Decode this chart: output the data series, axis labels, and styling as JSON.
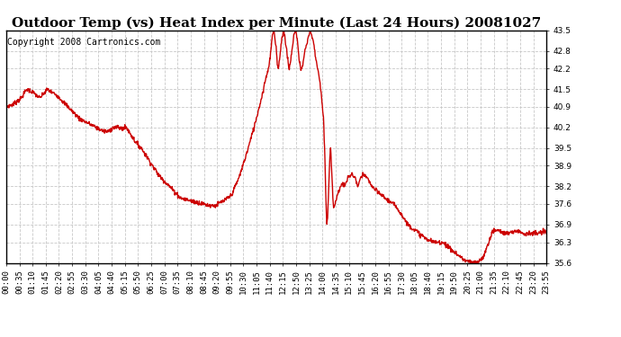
{
  "title": "Outdoor Temp (vs) Heat Index per Minute (Last 24 Hours) 20081027",
  "copyright": "Copyright 2008 Cartronics.com",
  "line_color": "#cc0000",
  "background_color": "#ffffff",
  "grid_color": "#c8c8c8",
  "ylim": [
    35.6,
    43.5
  ],
  "yticks": [
    35.6,
    36.3,
    36.9,
    37.6,
    38.2,
    38.9,
    39.5,
    40.2,
    40.9,
    41.5,
    42.2,
    42.8,
    43.5
  ],
  "xtick_labels": [
    "00:00",
    "00:35",
    "01:10",
    "01:45",
    "02:20",
    "02:55",
    "03:30",
    "04:05",
    "04:40",
    "05:15",
    "05:50",
    "06:25",
    "07:00",
    "07:35",
    "08:10",
    "08:45",
    "09:20",
    "09:55",
    "10:30",
    "11:05",
    "11:40",
    "12:15",
    "12:50",
    "13:25",
    "14:00",
    "14:35",
    "15:10",
    "15:45",
    "16:20",
    "16:55",
    "17:30",
    "18:05",
    "18:40",
    "19:15",
    "19:50",
    "20:25",
    "21:00",
    "21:35",
    "22:10",
    "22:45",
    "23:20",
    "23:55"
  ],
  "title_fontsize": 11,
  "copyright_fontsize": 7,
  "tick_fontsize": 6.5,
  "line_width": 1.0,
  "control_points": [
    [
      0,
      40.9
    ],
    [
      20,
      41.0
    ],
    [
      40,
      41.2
    ],
    [
      55,
      41.5
    ],
    [
      70,
      41.4
    ],
    [
      80,
      41.3
    ],
    [
      90,
      41.2
    ],
    [
      100,
      41.35
    ],
    [
      110,
      41.5
    ],
    [
      120,
      41.4
    ],
    [
      135,
      41.3
    ],
    [
      150,
      41.1
    ],
    [
      165,
      40.9
    ],
    [
      180,
      40.7
    ],
    [
      195,
      40.5
    ],
    [
      210,
      40.4
    ],
    [
      225,
      40.3
    ],
    [
      240,
      40.2
    ],
    [
      255,
      40.1
    ],
    [
      270,
      40.05
    ],
    [
      285,
      40.2
    ],
    [
      300,
      40.2
    ],
    [
      310,
      40.15
    ],
    [
      320,
      40.2
    ],
    [
      330,
      40.0
    ],
    [
      345,
      39.7
    ],
    [
      360,
      39.5
    ],
    [
      375,
      39.2
    ],
    [
      390,
      38.9
    ],
    [
      405,
      38.6
    ],
    [
      420,
      38.4
    ],
    [
      435,
      38.2
    ],
    [
      450,
      38.0
    ],
    [
      465,
      37.8
    ],
    [
      480,
      37.75
    ],
    [
      495,
      37.7
    ],
    [
      510,
      37.65
    ],
    [
      525,
      37.6
    ],
    [
      540,
      37.55
    ],
    [
      555,
      37.55
    ],
    [
      560,
      37.55
    ],
    [
      565,
      37.6
    ],
    [
      570,
      37.65
    ],
    [
      580,
      37.7
    ],
    [
      600,
      37.9
    ],
    [
      620,
      38.5
    ],
    [
      640,
      39.3
    ],
    [
      660,
      40.2
    ],
    [
      680,
      41.2
    ],
    [
      690,
      41.8
    ],
    [
      700,
      42.3
    ],
    [
      705,
      42.8
    ],
    [
      708,
      43.2
    ],
    [
      710,
      43.4
    ],
    [
      712,
      43.5
    ],
    [
      714,
      43.4
    ],
    [
      716,
      43.2
    ],
    [
      718,
      43.0
    ],
    [
      720,
      42.8
    ],
    [
      722,
      42.4
    ],
    [
      724,
      42.2
    ],
    [
      726,
      42.3
    ],
    [
      728,
      42.5
    ],
    [
      730,
      42.8
    ],
    [
      732,
      43.0
    ],
    [
      734,
      43.2
    ],
    [
      736,
      43.3
    ],
    [
      738,
      43.5
    ],
    [
      740,
      43.45
    ],
    [
      742,
      43.3
    ],
    [
      744,
      43.1
    ],
    [
      746,
      42.9
    ],
    [
      748,
      42.7
    ],
    [
      750,
      42.5
    ],
    [
      752,
      42.3
    ],
    [
      754,
      42.2
    ],
    [
      756,
      42.35
    ],
    [
      758,
      42.5
    ],
    [
      760,
      42.7
    ],
    [
      762,
      42.9
    ],
    [
      764,
      43.1
    ],
    [
      766,
      43.3
    ],
    [
      768,
      43.45
    ],
    [
      770,
      43.5
    ],
    [
      772,
      43.45
    ],
    [
      774,
      43.3
    ],
    [
      776,
      43.1
    ],
    [
      778,
      42.8
    ],
    [
      780,
      42.5
    ],
    [
      785,
      42.2
    ],
    [
      790,
      42.3
    ],
    [
      795,
      42.8
    ],
    [
      800,
      43.0
    ],
    [
      805,
      43.3
    ],
    [
      810,
      43.5
    ],
    [
      812,
      43.4
    ],
    [
      816,
      43.2
    ],
    [
      820,
      43.0
    ],
    [
      825,
      42.5
    ],
    [
      830,
      42.2
    ],
    [
      835,
      41.8
    ],
    [
      840,
      41.2
    ],
    [
      845,
      40.5
    ],
    [
      848,
      39.5
    ],
    [
      850,
      38.5
    ],
    [
      852,
      37.5
    ],
    [
      854,
      36.9
    ],
    [
      856,
      37.2
    ],
    [
      858,
      37.8
    ],
    [
      860,
      38.5
    ],
    [
      862,
      39.2
    ],
    [
      864,
      39.5
    ],
    [
      866,
      39.0
    ],
    [
      868,
      38.5
    ],
    [
      870,
      37.8
    ],
    [
      872,
      37.5
    ],
    [
      876,
      37.6
    ],
    [
      880,
      37.8
    ],
    [
      885,
      38.0
    ],
    [
      890,
      38.2
    ],
    [
      895,
      38.3
    ],
    [
      900,
      38.2
    ],
    [
      905,
      38.3
    ],
    [
      910,
      38.5
    ],
    [
      920,
      38.6
    ],
    [
      930,
      38.5
    ],
    [
      935,
      38.2
    ],
    [
      940,
      38.3
    ],
    [
      945,
      38.5
    ],
    [
      950,
      38.6
    ],
    [
      960,
      38.5
    ],
    [
      965,
      38.4
    ],
    [
      970,
      38.3
    ],
    [
      975,
      38.2
    ],
    [
      980,
      38.1
    ],
    [
      990,
      38.0
    ],
    [
      1000,
      37.9
    ],
    [
      1010,
      37.8
    ],
    [
      1020,
      37.7
    ],
    [
      1030,
      37.6
    ],
    [
      1040,
      37.5
    ],
    [
      1050,
      37.3
    ],
    [
      1060,
      37.1
    ],
    [
      1070,
      36.9
    ],
    [
      1080,
      36.8
    ],
    [
      1090,
      36.7
    ],
    [
      1100,
      36.6
    ],
    [
      1110,
      36.5
    ],
    [
      1120,
      36.4
    ],
    [
      1130,
      36.35
    ],
    [
      1140,
      36.3
    ],
    [
      1150,
      36.3
    ],
    [
      1160,
      36.3
    ],
    [
      1170,
      36.25
    ],
    [
      1180,
      36.1
    ],
    [
      1190,
      36.0
    ],
    [
      1200,
      35.9
    ],
    [
      1210,
      35.8
    ],
    [
      1220,
      35.7
    ],
    [
      1230,
      35.65
    ],
    [
      1240,
      35.6
    ],
    [
      1250,
      35.6
    ],
    [
      1260,
      35.65
    ],
    [
      1270,
      35.8
    ],
    [
      1280,
      36.1
    ],
    [
      1285,
      36.3
    ],
    [
      1290,
      36.5
    ],
    [
      1295,
      36.65
    ],
    [
      1300,
      36.7
    ],
    [
      1310,
      36.7
    ],
    [
      1320,
      36.65
    ],
    [
      1330,
      36.6
    ],
    [
      1340,
      36.6
    ],
    [
      1350,
      36.65
    ],
    [
      1360,
      36.7
    ],
    [
      1370,
      36.65
    ],
    [
      1380,
      36.6
    ],
    [
      1390,
      36.6
    ],
    [
      1400,
      36.6
    ],
    [
      1410,
      36.6
    ],
    [
      1420,
      36.6
    ],
    [
      1430,
      36.65
    ],
    [
      1439,
      36.65
    ]
  ]
}
